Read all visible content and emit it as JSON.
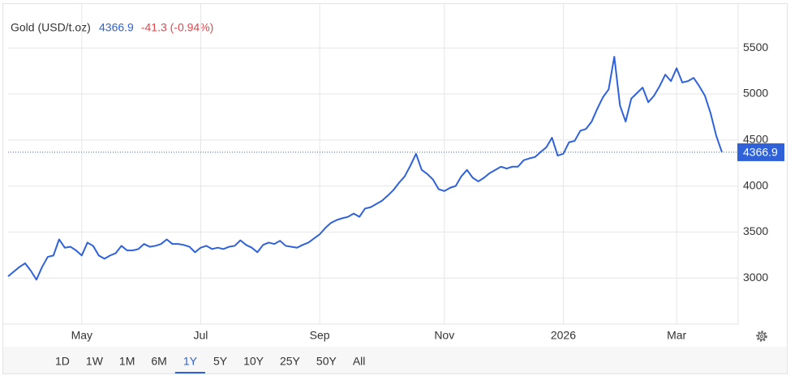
{
  "chart_data": {
    "type": "line",
    "title": "Gold (USD/t.oz)",
    "last": 4366.9,
    "change": "-41.3 (-0.94%)",
    "color": "#2f62d9",
    "values": [
      3018,
      3070,
      3120,
      3160,
      3080,
      2982,
      3120,
      3230,
      3245,
      3420,
      3330,
      3340,
      3300,
      3245,
      3385,
      3350,
      3245,
      3210,
      3245,
      3270,
      3350,
      3300,
      3300,
      3315,
      3370,
      3340,
      3350,
      3370,
      3420,
      3370,
      3370,
      3360,
      3340,
      3280,
      3330,
      3350,
      3315,
      3330,
      3315,
      3340,
      3350,
      3410,
      3360,
      3330,
      3280,
      3360,
      3385,
      3370,
      3405,
      3350,
      3340,
      3330,
      3360,
      3385,
      3430,
      3475,
      3545,
      3600,
      3630,
      3650,
      3665,
      3700,
      3665,
      3755,
      3770,
      3805,
      3840,
      3895,
      3955,
      4035,
      4105,
      4220,
      4350,
      4175,
      4130,
      4070,
      3965,
      3945,
      3980,
      4000,
      4105,
      4175,
      4090,
      4050,
      4090,
      4140,
      4175,
      4210,
      4190,
      4210,
      4210,
      4280,
      4300,
      4315,
      4370,
      4420,
      4525,
      4330,
      4350,
      4475,
      4490,
      4600,
      4620,
      4700,
      4840,
      4965,
      5050,
      5405,
      4875,
      4700,
      4950,
      5010,
      5070,
      4910,
      4980,
      5085,
      5210,
      5140,
      5280,
      5125,
      5140,
      5175,
      5085,
      4980,
      4790,
      4545,
      4366.9
    ],
    "xlim": [
      0,
      126
    ],
    "xticks": [
      {
        "value": 13,
        "label": "May"
      },
      {
        "value": 34,
        "label": "Jul"
      },
      {
        "value": 55,
        "label": "Sep"
      },
      {
        "value": 77,
        "label": "Nov"
      },
      {
        "value": 98,
        "label": "2026"
      },
      {
        "value": 118,
        "label": "Mar"
      }
    ],
    "ylim": [
      2500,
      6000
    ],
    "yticks": [
      3000,
      3500,
      4000,
      4500,
      5000,
      5500
    ],
    "grid": true,
    "ranges": [
      "1D",
      "1W",
      "1M",
      "6M",
      "1Y",
      "5Y",
      "10Y",
      "25Y",
      "50Y",
      "All"
    ],
    "selected_range": "1Y"
  }
}
